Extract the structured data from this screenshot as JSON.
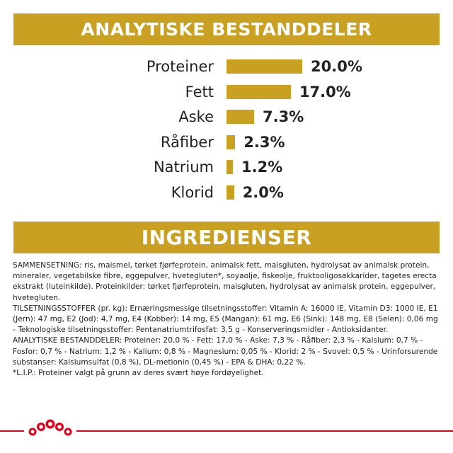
{
  "section_analytics": {
    "title": "ANALYTISKE BESTANDDELER"
  },
  "nutrients": [
    {
      "label": "Proteiner",
      "value": "20.0%",
      "percent": 20.0
    },
    {
      "label": "Fett",
      "value": "17.0%",
      "percent": 17.0
    },
    {
      "label": "Aske",
      "value": "7.3%",
      "percent": 7.3
    },
    {
      "label": "Råfiber",
      "value": "2.3%",
      "percent": 2.3
    },
    {
      "label": "Natrium",
      "value": "1.2%",
      "percent": 1.2
    },
    {
      "label": "Klorid",
      "value": "2.0%",
      "percent": 2.0
    }
  ],
  "section_ingredients": {
    "title": "INGREDIENSER"
  },
  "ingredients_text": {
    "composition": "SAMMENSETNING: ris, maismel, tørket fjørfeprotein, animalsk fett, maisgluten, hydrolysat av animalsk protein, mineraler, vegetabilske fibre, eggepulver, hvetegluten*, soyaolje, fiskeolje, fruktooligosakkarider, tagetes erecta ekstrakt (luteinkilde). Proteinkilder: tørket fjørfeprotein, maisgluten, hydrolysat av animalsk protein, eggepulver, hvetegluten.",
    "additives": "TILSETNINGSSTOFFER (pr. kg): Ernæringsmessige tilsetningsstoffer: Vitamin A: 16000 IE, Vitamin D3: 1000 IE, E1 (Jern): 47 mg, E2 (Jod): 4,7 mg, E4 (Kobber): 14 mg, E5 (Mangan): 61 mg, E6 (Sink): 148 mg, E8 (Selen): 0,06 mg - Teknologiske tilsetningsstoffer: Pentanatriumtrifosfat: 3,5 g - Konserveringsmidler - Antioksidanter.",
    "analytics": "ANALYTISKE BESTANDDELER: Proteiner: 20,0 % - Fett: 17,0 % - Aske: 7,3 % - Råfiber: 2,3 % - Kalsium: 0,7 % - Fosfor: 0,7 % - Natrium: 1,2 % - Kalium: 0,8 % - Magnesium: 0,05 % - Klorid: 2 % - Svovel: 0,5 % - Urinforsurende substanser: Kalsiumsulfat (0,8 %), DL-metionin (0,45 %) - EPA & DHA: 0,22 %.",
    "footnote": "*L.I.P.: Proteiner valgt på grunn av deres svært høye fordøyelighet."
  },
  "colors": {
    "gold": "#c9a021",
    "brand_red": "#e2001a",
    "text": "#222222"
  },
  "icons": {
    "footer": "royal-canin-crown-icon"
  }
}
